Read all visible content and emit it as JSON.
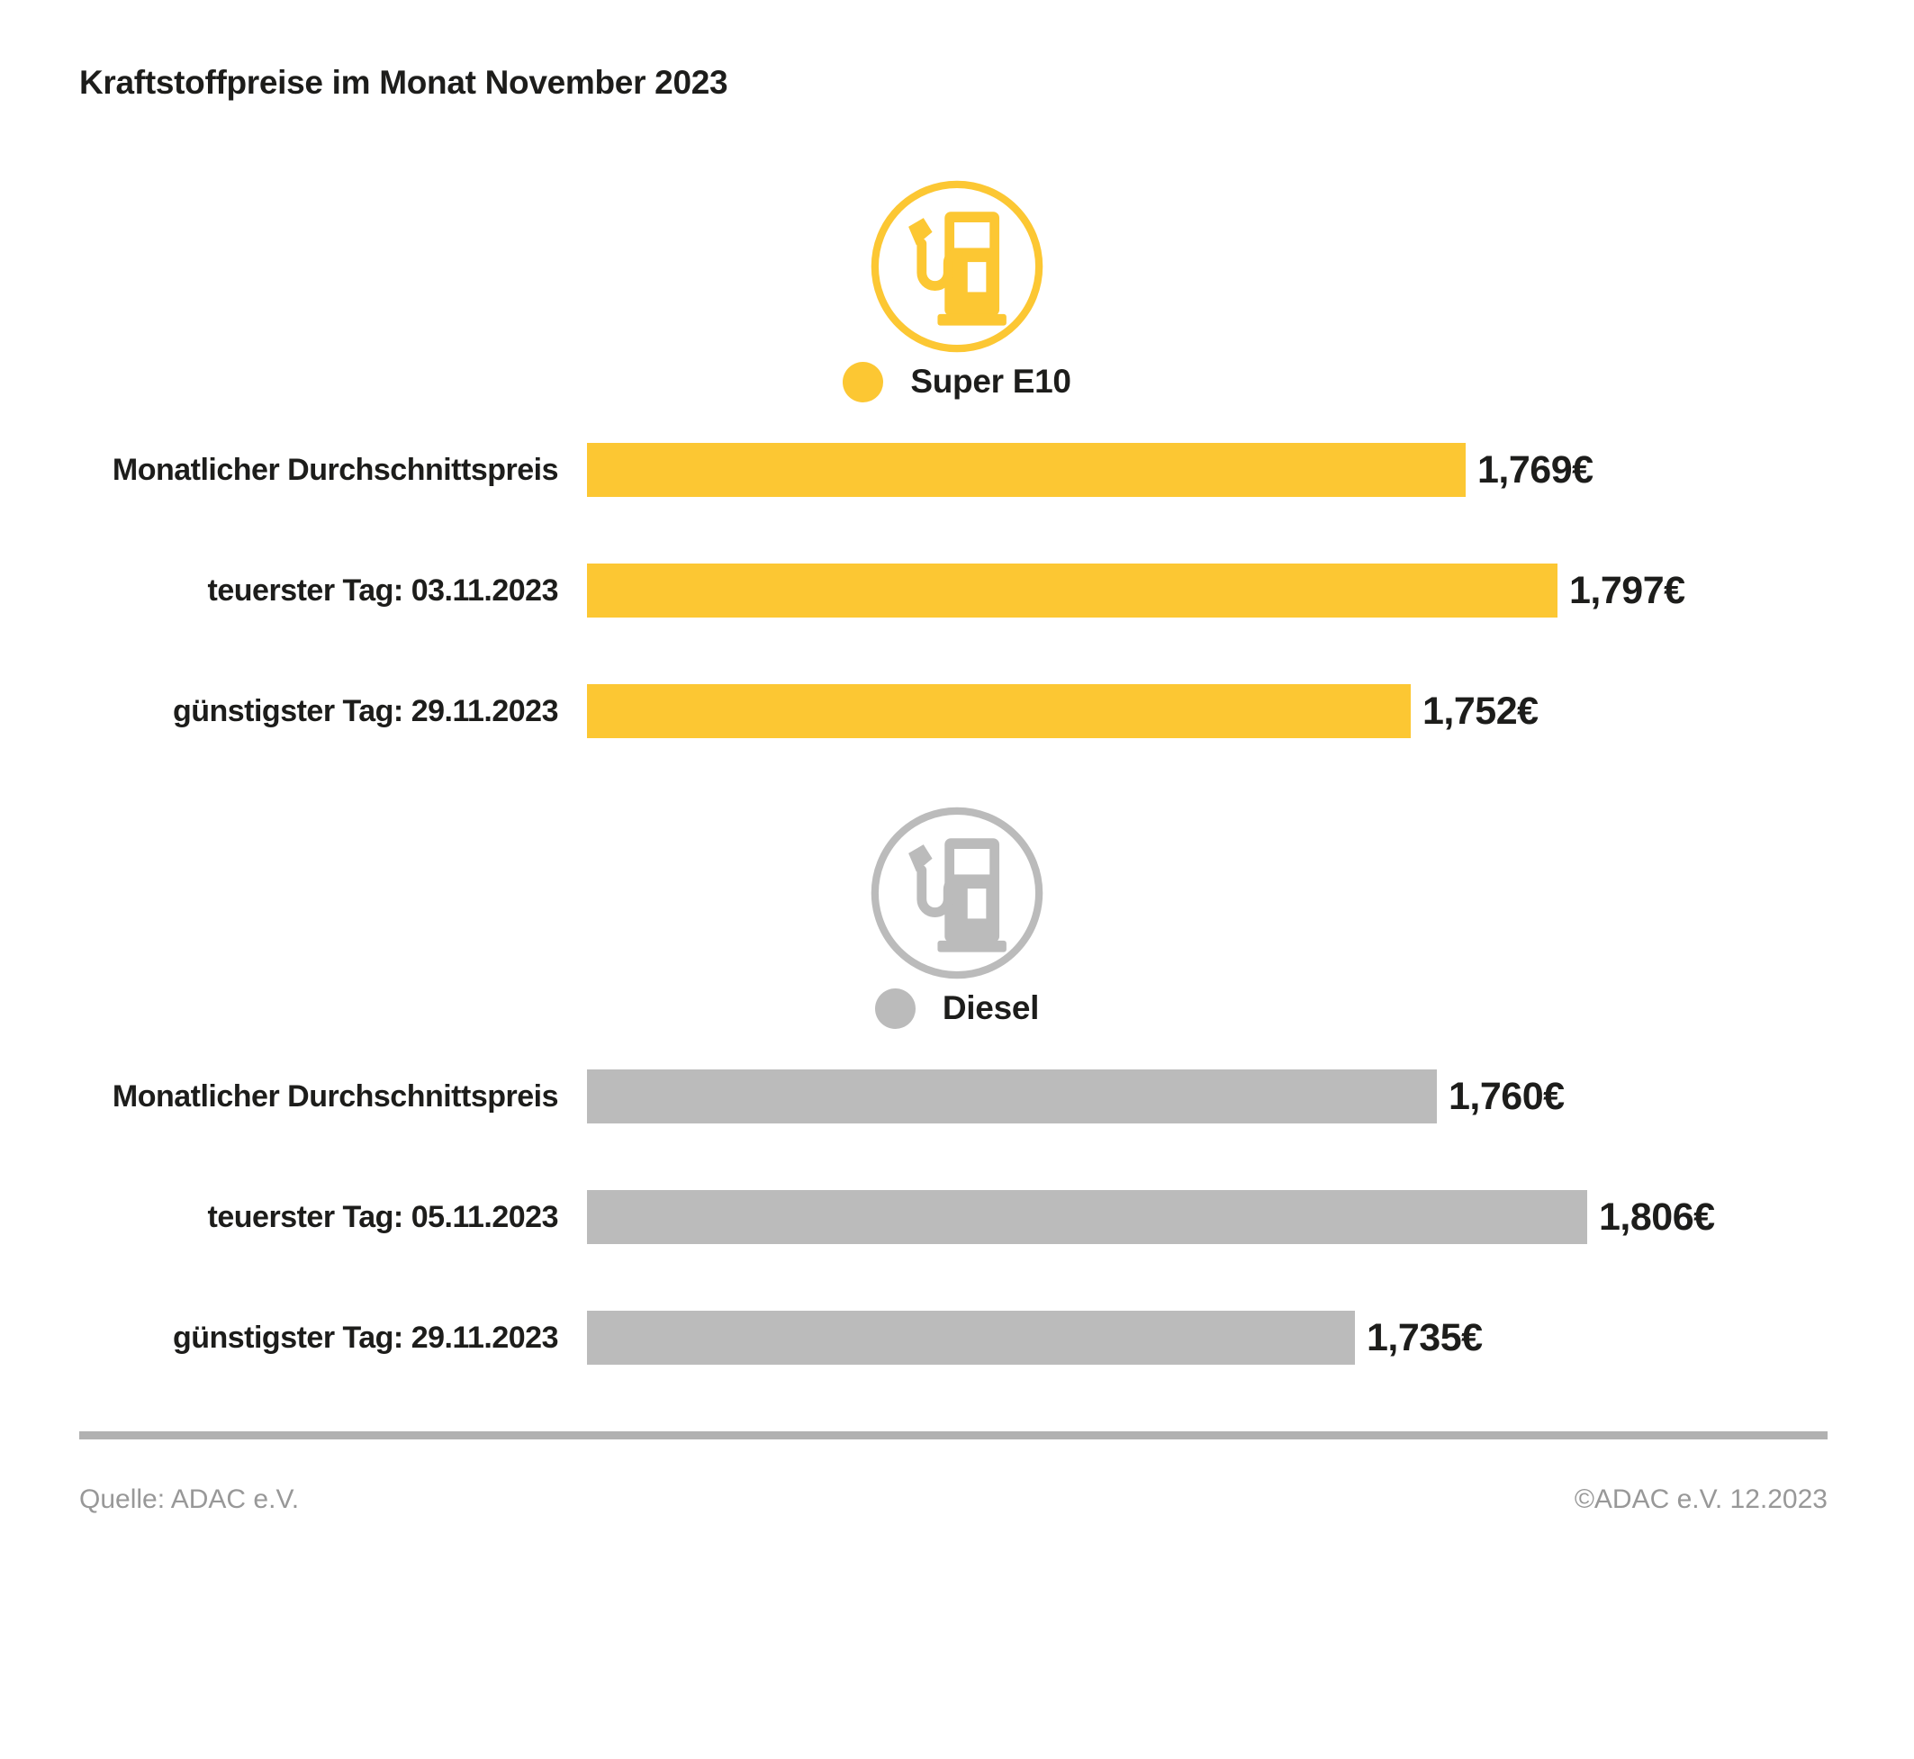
{
  "title": "Kraftstoffpreise im Monat November 2023",
  "colors": {
    "super_e10": "#FCC733",
    "diesel": "#BBBBBB",
    "text": "#1D1D1B",
    "footer_text": "#989898",
    "divider": "#B1B1B1"
  },
  "chart_data": [
    {
      "type": "bar",
      "orientation": "horizontal",
      "series_label": "Super E10",
      "icon": "fuel-pump-icon",
      "color": "#FCC733",
      "categories": [
        "Monatlicher Durchschnittspreis",
        "teuerster Tag: 03.11.2023",
        "günstigster Tag: 29.11.2023"
      ],
      "values": [
        1.769,
        1.797,
        1.752
      ],
      "value_labels": [
        "1,769€",
        "1,797€",
        "1,752€"
      ],
      "xlim": [
        1.5,
        1.85
      ],
      "grid": false,
      "legend_position": "top-center"
    },
    {
      "type": "bar",
      "orientation": "horizontal",
      "series_label": "Diesel",
      "icon": "fuel-pump-icon",
      "color": "#BBBBBB",
      "categories": [
        "Monatlicher Durchschnittspreis",
        "teuerster Tag: 05.11.2023",
        "günstigster Tag: 29.11.2023"
      ],
      "values": [
        1.76,
        1.806,
        1.735
      ],
      "value_labels": [
        "1,760€",
        "1,806€",
        "1,735€"
      ],
      "xlim": [
        1.5,
        1.85
      ],
      "grid": false,
      "legend_position": "top-center"
    }
  ],
  "footer": {
    "source": "Quelle: ADAC e.V.",
    "copyright": "©ADAC e.V. 12.2023"
  }
}
